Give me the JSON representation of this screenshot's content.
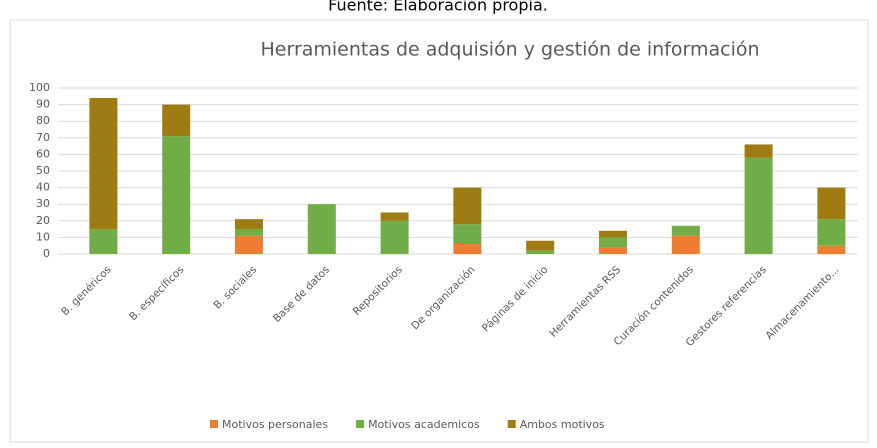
{
  "caption": "Fuente: Elaboración propia.",
  "chart_data": {
    "type": "stacked_bar",
    "title": "Herramientas de adquisión y gestión de información",
    "categories": [
      "B. genéricos",
      "B. específicos",
      "B. sociales",
      "Base de datos",
      "Repositorios",
      "De organización",
      "Páginas de inicio",
      "Herramientas RSS",
      "Curación contenidos",
      "Gestores referencias",
      "Almacenamiento..."
    ],
    "series": [
      {
        "name": "Motivos personales",
        "color": "#ed7d31",
        "values": [
          0,
          0,
          11,
          0,
          0,
          6,
          0,
          4,
          11,
          0,
          5
        ]
      },
      {
        "name": "Motivos academicos",
        "color": "#70ad47",
        "values": [
          15,
          71,
          4,
          30,
          20,
          12,
          2,
          6,
          6,
          58,
          16
        ]
      },
      {
        "name": "Ambos motivos",
        "color": "#9e7b13",
        "values": [
          79,
          19,
          6,
          0,
          5,
          22,
          6,
          4,
          0,
          8,
          19
        ]
      }
    ],
    "ylim": [
      0,
      100
    ],
    "yticks": [
      0,
      10,
      20,
      30,
      40,
      50,
      60,
      70,
      80,
      90,
      100
    ],
    "grid": true,
    "legend": "bottom"
  }
}
